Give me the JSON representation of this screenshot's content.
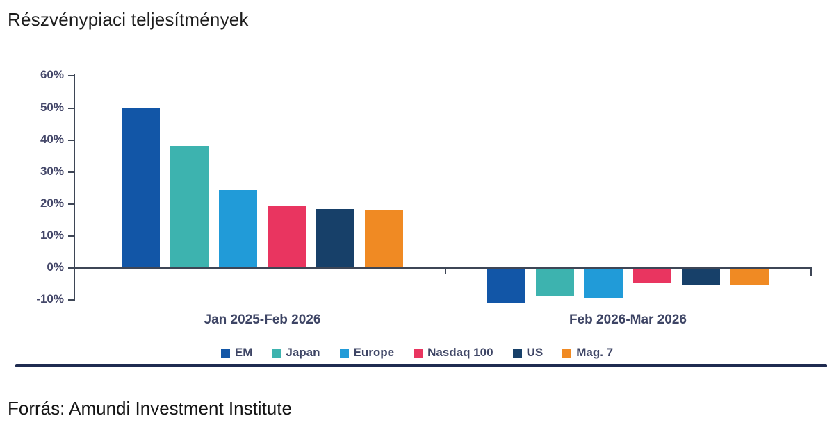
{
  "title": "Részvénypiaci teljesítmények",
  "source": "Forrás: Amundi Investment Institute",
  "colors": {
    "axis": "#3e4656",
    "tick_label": "#444769",
    "divider": "#1f2b50",
    "em": "#1256a7",
    "japan": "#3db3af",
    "europe": "#219bd8",
    "nasdaq100": "#e93560",
    "us": "#174069",
    "mag7": "#f08a23"
  },
  "chart_data": {
    "type": "bar",
    "title": "Részvénypiaci teljesítmények",
    "categories": [
      "Jan 2025-Feb 2026",
      "Feb 2026-Mar 2026"
    ],
    "series": [
      {
        "name": "EM",
        "color": "#1256a7",
        "values": [
          50.0,
          -10.7
        ]
      },
      {
        "name": "Japan",
        "color": "#3db3af",
        "values": [
          38.0,
          -8.4
        ]
      },
      {
        "name": "Europe",
        "color": "#219bd8",
        "values": [
          24.0,
          -8.9
        ]
      },
      {
        "name": "Nasdaq 100",
        "color": "#e93560",
        "values": [
          19.3,
          -4.1
        ]
      },
      {
        "name": "US",
        "color": "#174069",
        "values": [
          18.2,
          -5.0
        ]
      },
      {
        "name": "Mag. 7",
        "color": "#f08a23",
        "values": [
          17.9,
          -4.7
        ]
      }
    ],
    "xlabel": "",
    "ylabel": "",
    "y_ticks": [
      "60%",
      "50%",
      "40%",
      "30%",
      "20%",
      "10%",
      "0%",
      "-10%"
    ],
    "ylim": [
      -10,
      60
    ],
    "grid": false,
    "legend_position": "bottom"
  }
}
